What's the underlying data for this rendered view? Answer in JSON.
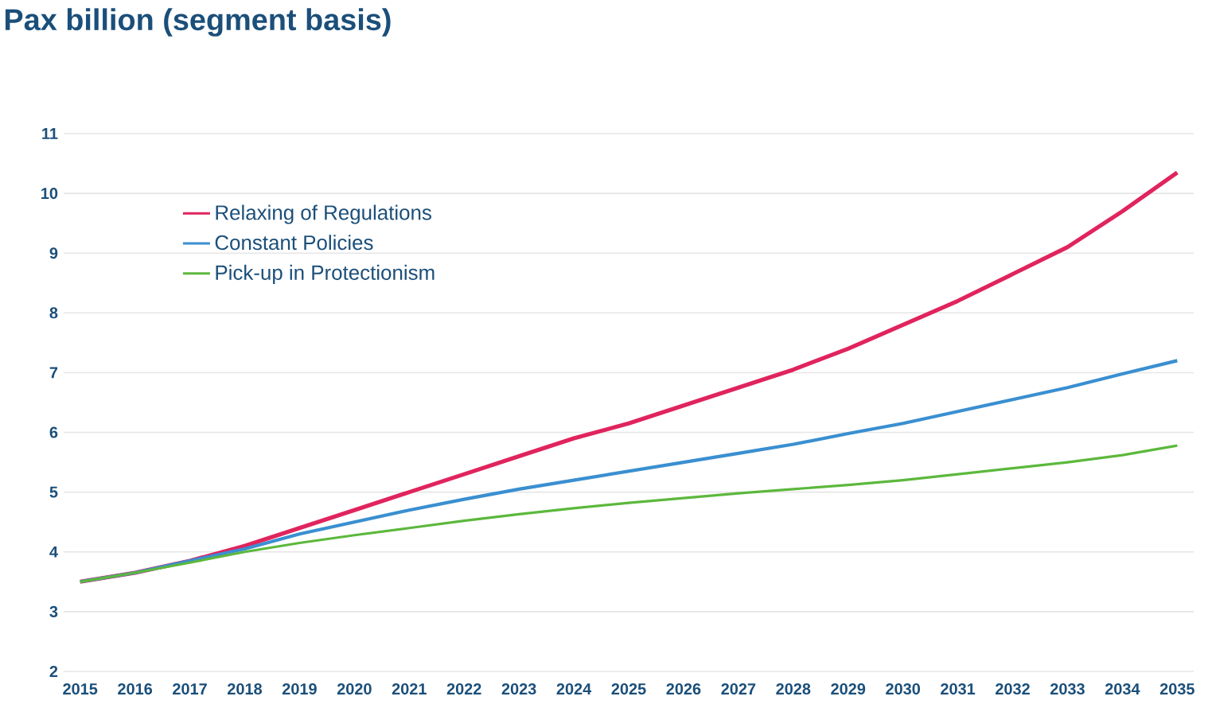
{
  "chart_data": {
    "type": "line",
    "title": "Pax billion (segment basis)",
    "x": [
      2015,
      2016,
      2017,
      2018,
      2019,
      2020,
      2021,
      2022,
      2023,
      2024,
      2025,
      2026,
      2027,
      2028,
      2029,
      2030,
      2031,
      2032,
      2033,
      2034,
      2035
    ],
    "series": [
      {
        "name": "Relaxing of Regulations",
        "color": "#e0245e",
        "values": [
          3.5,
          3.65,
          3.85,
          4.1,
          4.4,
          4.7,
          5.0,
          5.3,
          5.6,
          5.9,
          6.15,
          6.45,
          6.75,
          7.05,
          7.4,
          7.8,
          8.2,
          8.65,
          9.1,
          9.7,
          10.35
        ]
      },
      {
        "name": "Constant Policies",
        "color": "#3a8fd0",
        "values": [
          3.5,
          3.65,
          3.85,
          4.05,
          4.3,
          4.5,
          4.7,
          4.88,
          5.05,
          5.2,
          5.35,
          5.5,
          5.65,
          5.8,
          5.98,
          6.15,
          6.35,
          6.55,
          6.75,
          6.98,
          7.2
        ]
      },
      {
        "name": "Pick-up in Protectionism",
        "color": "#5cb83c",
        "values": [
          3.5,
          3.65,
          3.82,
          4.0,
          4.15,
          4.28,
          4.4,
          4.52,
          4.63,
          4.73,
          4.82,
          4.9,
          4.98,
          5.05,
          5.12,
          5.2,
          5.3,
          5.4,
          5.5,
          5.62,
          5.78
        ]
      }
    ],
    "xlim": [
      2014.7,
      2035.3
    ],
    "xticks": [
      2015,
      2016,
      2017,
      2018,
      2019,
      2020,
      2021,
      2022,
      2023,
      2024,
      2025,
      2026,
      2027,
      2028,
      2029,
      2030,
      2031,
      2032,
      2033,
      2034,
      2035
    ],
    "ylim": [
      2,
      11
    ],
    "yticks": [
      2,
      3,
      4,
      5,
      6,
      7,
      8,
      9,
      10,
      11
    ],
    "grid": "y",
    "legend": "top left",
    "marker": "none",
    "line_style": "solid"
  }
}
